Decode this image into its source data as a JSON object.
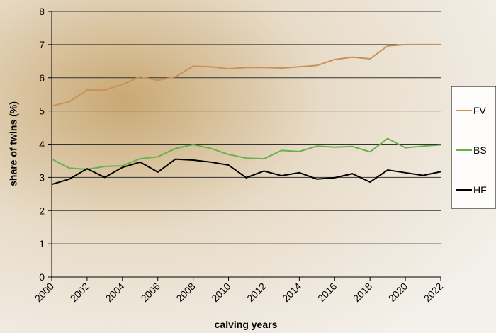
{
  "chart_data": {
    "type": "line",
    "xlabel": "calving years",
    "ylabel": "share of twins (%)",
    "x": [
      2000,
      2001,
      2002,
      2003,
      2004,
      2005,
      2006,
      2007,
      2008,
      2009,
      2010,
      2011,
      2012,
      2013,
      2014,
      2015,
      2016,
      2017,
      2018,
      2019,
      2020,
      2021,
      2022
    ],
    "xlim": [
      2000,
      2022
    ],
    "xticks": [
      2000,
      2002,
      2004,
      2006,
      2008,
      2010,
      2012,
      2014,
      2016,
      2018,
      2020,
      2022
    ],
    "ylim": [
      0,
      8
    ],
    "yticks": [
      0,
      1,
      2,
      3,
      4,
      5,
      6,
      7,
      8
    ],
    "grid": true,
    "legend": "right",
    "series": [
      {
        "name": "FV",
        "color": "#c8915a",
        "values": [
          5.15,
          5.28,
          5.63,
          5.63,
          5.8,
          6.03,
          5.92,
          6.03,
          6.35,
          6.33,
          6.27,
          6.31,
          6.31,
          6.29,
          6.33,
          6.37,
          6.55,
          6.62,
          6.57,
          6.96,
          7.0,
          7.0,
          7.0
        ]
      },
      {
        "name": "BS",
        "color": "#6ab04c",
        "values": [
          3.55,
          3.28,
          3.24,
          3.33,
          3.35,
          3.56,
          3.62,
          3.87,
          3.99,
          3.87,
          3.69,
          3.58,
          3.56,
          3.81,
          3.78,
          3.94,
          3.91,
          3.93,
          3.77,
          4.17,
          3.89,
          3.94,
          3.98
        ]
      },
      {
        "name": "HF",
        "color": "#000000",
        "values": [
          2.79,
          2.95,
          3.26,
          3.0,
          3.3,
          3.46,
          3.16,
          3.55,
          3.52,
          3.46,
          3.37,
          2.99,
          3.19,
          3.05,
          3.14,
          2.95,
          2.99,
          3.11,
          2.86,
          3.22,
          3.14,
          3.06,
          3.17
        ]
      }
    ]
  }
}
